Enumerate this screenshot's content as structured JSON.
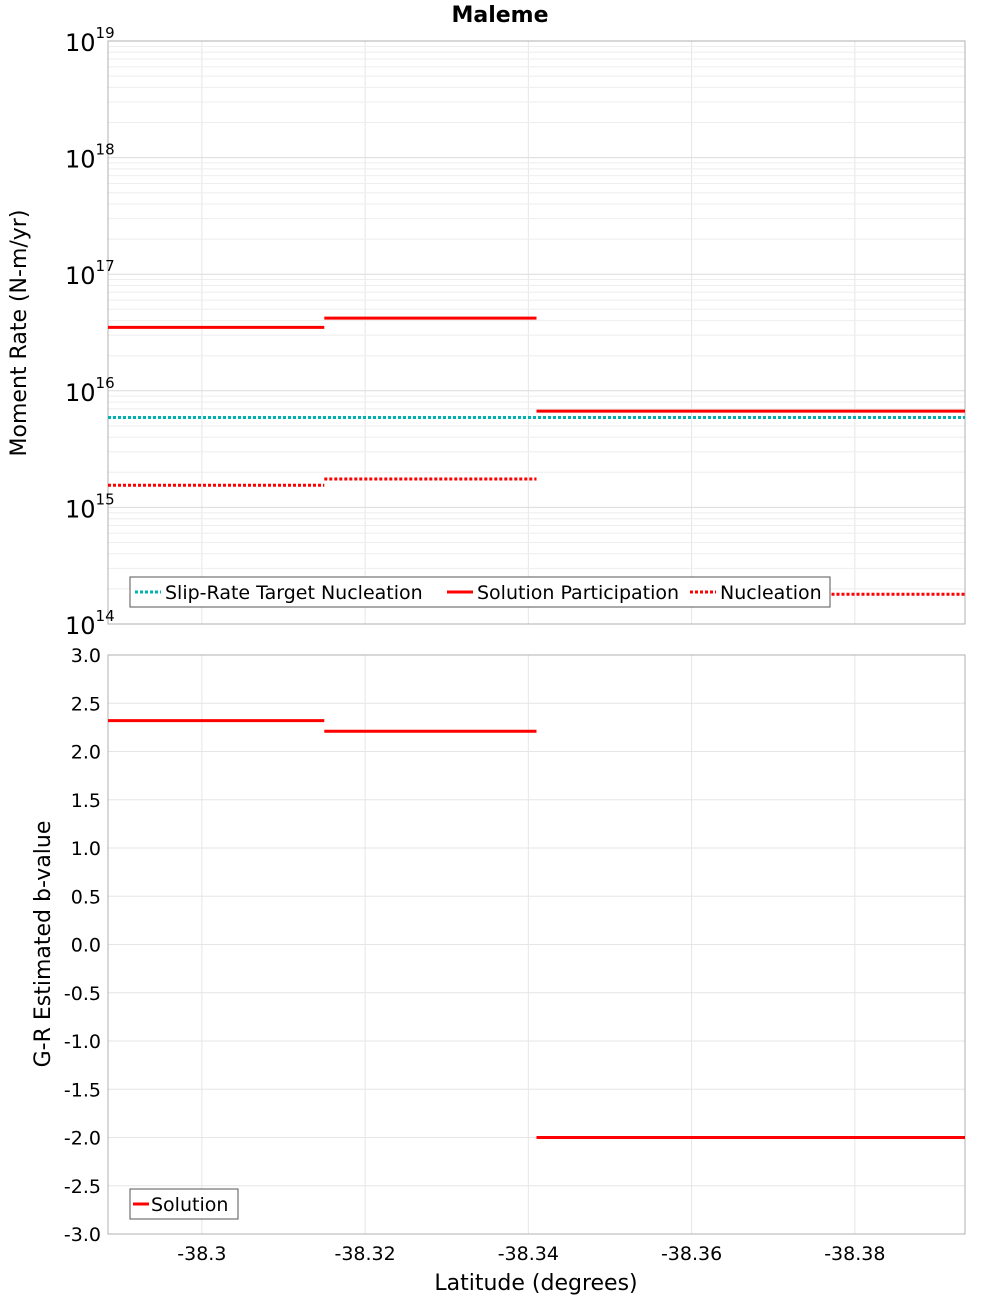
{
  "chart_data": [
    {
      "type": "line",
      "title": "Maleme",
      "ylabel": "Moment Rate (N-m/yr)",
      "yscale": "log",
      "ylim": [
        100000000000000.0,
        1e+19
      ],
      "xlim": [
        -38.2885,
        -38.3935
      ],
      "x_reversed": false,
      "yticks": [
        {
          "base": "10",
          "exp": "14"
        },
        {
          "base": "10",
          "exp": "15"
        },
        {
          "base": "10",
          "exp": "16"
        },
        {
          "base": "10",
          "exp": "17"
        },
        {
          "base": "10",
          "exp": "18"
        },
        {
          "base": "10",
          "exp": "19"
        }
      ],
      "grid": true,
      "legend_position": "bottom-left",
      "series": [
        {
          "name": "Slip-Rate Target Nucleation",
          "color": "#00b3b3",
          "style": "dotted",
          "segments": [
            {
              "x": [
                -38.2885,
                -38.3935
              ],
              "y": 5900000000000000.0
            }
          ]
        },
        {
          "name": "Solution Participation",
          "color": "#ff0000",
          "style": "solid",
          "segments": [
            {
              "x": [
                -38.2885,
                -38.315
              ],
              "y": 3.5e+16
            },
            {
              "x": [
                -38.315,
                -38.341
              ],
              "y": 4.2e+16
            },
            {
              "x": [
                -38.341,
                -38.3935
              ],
              "y": 6700000000000000.0
            }
          ]
        },
        {
          "name": "Nucleation",
          "color": "#ff0000",
          "style": "dotted",
          "segments": [
            {
              "x": [
                -38.2885,
                -38.315
              ],
              "y": 1550000000000000.0
            },
            {
              "x": [
                -38.315,
                -38.341
              ],
              "y": 1750000000000000.0
            },
            {
              "x": [
                -38.341,
                -38.3935
              ],
              "y": 180000000000000.0
            }
          ]
        }
      ]
    },
    {
      "type": "line",
      "xlabel": "Latitude (degrees)",
      "ylabel": "G-R Estimated b-value",
      "ylim": [
        -3.0,
        3.0
      ],
      "xlim": [
        -38.2885,
        -38.3935
      ],
      "yticks": [
        "3.0",
        "2.5",
        "2.0",
        "1.5",
        "1.0",
        "0.5",
        "0.0",
        "-0.5",
        "-1.0",
        "-1.5",
        "-2.0",
        "-2.5",
        "-3.0"
      ],
      "ytick_values": [
        3.0,
        2.5,
        2.0,
        1.5,
        1.0,
        0.5,
        0.0,
        -0.5,
        -1.0,
        -1.5,
        -2.0,
        -2.5,
        -3.0
      ],
      "xticks": [
        "-38.3",
        "-38.32",
        "-38.34",
        "-38.36",
        "-38.38"
      ],
      "xtick_values": [
        -38.3,
        -38.32,
        -38.34,
        -38.36,
        -38.38
      ],
      "grid": true,
      "legend_position": "bottom-left",
      "series": [
        {
          "name": "Solution",
          "color": "#ff0000",
          "style": "solid",
          "segments": [
            {
              "x": [
                -38.2885,
                -38.315
              ],
              "y": 2.32
            },
            {
              "x": [
                -38.315,
                -38.341
              ],
              "y": 2.21
            },
            {
              "x": [
                -38.341,
                -38.3935
              ],
              "y": -2.0
            }
          ]
        }
      ]
    }
  ]
}
